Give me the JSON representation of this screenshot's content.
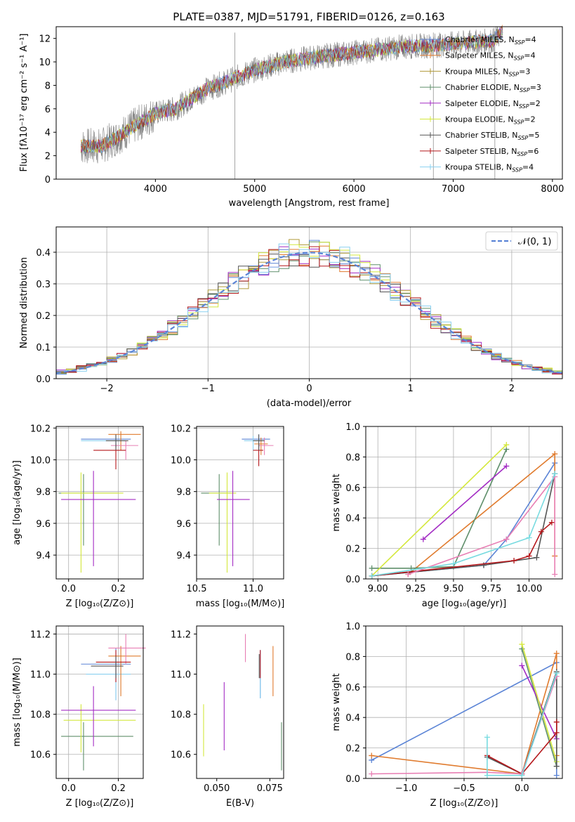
{
  "chart_data": [
    {
      "type": "line",
      "title": "PLATE=0387, MJD=51791, FIBERID=0126, z=0.163",
      "xlabel": "wavelength [Angstrom, rest frame]",
      "ylabel": "Flux [fλ10⁻¹⁷ erg cm⁻² s⁻¹ A⁻¹]",
      "xlim": [
        3000,
        8100
      ],
      "ylim": [
        0,
        13
      ],
      "xticks": [
        4000,
        5000,
        6000,
        7000,
        8000
      ],
      "yticks": [
        0,
        2,
        4,
        6,
        8,
        10,
        12
      ],
      "legend_position": "top-right",
      "grid": false,
      "observed": {
        "x": [
          3250,
          3450,
          3600,
          3800,
          4000,
          4200,
          4500,
          4800,
          5000,
          5300,
          5600,
          5900,
          6200,
          6500,
          6800,
          7100,
          7400,
          7500
        ],
        "y": [
          2.8,
          2.8,
          3.5,
          4.6,
          5.6,
          6.0,
          7.6,
          8.6,
          9.3,
          10.0,
          10.4,
          10.7,
          11.0,
          11.3,
          11.4,
          11.6,
          11.8,
          12.6
        ]
      },
      "series": [
        {
          "name": "Chabrier MILES, N_SSP=4",
          "color": "#5b84d6"
        },
        {
          "name": "Salpeter MILES, N_SSP=4",
          "color": "#e07b2e"
        },
        {
          "name": "Kroupa MILES, N_SSP=3",
          "color": "#b09a3a"
        },
        {
          "name": "Chabrier ELODIE, N_SSP=3",
          "color": "#5f8f6b"
        },
        {
          "name": "Salpeter ELODIE, N_SSP=2",
          "color": "#a32cc4"
        },
        {
          "name": "Kroupa ELODIE, N_SSP=2",
          "color": "#d4e83c"
        },
        {
          "name": "Chabrier STELIB, N_SSP=5",
          "color": "#555555"
        },
        {
          "name": "Salpeter STELIB, N_SSP=6",
          "color": "#b5171b"
        },
        {
          "name": "Kroupa STELIB, N_SSP=4",
          "color": "#8ad0f0"
        }
      ]
    },
    {
      "type": "histogram",
      "xlabel": "(data-model)/error",
      "ylabel": "Normed distribution",
      "xlim": [
        -2.5,
        2.5
      ],
      "ylim": [
        0,
        0.48
      ],
      "xticks": [
        -2,
        -1,
        0,
        1,
        2
      ],
      "xtick_labels": [
        "−2",
        "−1",
        "0",
        "1",
        "2"
      ],
      "yticks": [
        0.0,
        0.1,
        0.2,
        0.3,
        0.4
      ],
      "ytick_labels": [
        "0.0",
        "0.1",
        "0.2",
        "0.3",
        "0.4"
      ],
      "grid": true,
      "legend": "𝒩(0, 1)",
      "legend_position": "top-right",
      "gaussian": {
        "mu": 0,
        "sigma": 1,
        "color": "#5b84d6"
      },
      "bin_width": 0.1
    },
    {
      "type": "scatter",
      "xlabel": "Z [log₁₀(Z/Z⊙)]",
      "ylabel": "age  [log₁₀(age/yr)]",
      "xlim": [
        -0.05,
        0.3
      ],
      "ylim": [
        9.25,
        10.21
      ],
      "xticks": [
        0.0,
        0.2
      ],
      "xtick_labels": [
        "0.0",
        "0.2"
      ],
      "yticks": [
        9.4,
        9.6,
        9.8,
        10.0,
        10.2
      ],
      "ytick_labels": [
        "9.4",
        "9.6",
        "9.8",
        "10.0",
        "10.2"
      ],
      "grid": true,
      "points": [
        {
          "x": 0.19,
          "y": 10.13,
          "xerr": [
            0.14,
            0.06
          ],
          "yerr": [
            0.05,
            0.03
          ],
          "color": "#5b84d6"
        },
        {
          "x": 0.19,
          "y": 10.12,
          "xerr": [
            0.14,
            0.04
          ],
          "yerr": [
            0.04,
            0.03
          ],
          "color": "#8ad0f0"
        },
        {
          "x": 0.21,
          "y": 10.16,
          "xerr": [
            0.05,
            0.08
          ],
          "yerr": [
            0.1,
            0.02
          ],
          "color": "#e07b2e"
        },
        {
          "x": 0.23,
          "y": 10.09,
          "xerr": [
            0.06,
            0.05
          ],
          "yerr": [
            0.09,
            0.03
          ],
          "color": "#e87fb4"
        },
        {
          "x": 0.19,
          "y": 10.06,
          "xerr": [
            0.09,
            0.04
          ],
          "yerr": [
            0.12,
            0.04
          ],
          "color": "#b5171b"
        },
        {
          "x": 0.19,
          "y": 10.12,
          "xerr": [
            0.04,
            0.05
          ],
          "yerr": [
            0.06,
            0.04
          ],
          "color": "#555555"
        },
        {
          "x": 0.06,
          "y": 9.79,
          "xerr": [
            0.1,
            0.14
          ],
          "yerr": [
            0.33,
            0.12
          ],
          "color": "#5f8f6b"
        },
        {
          "x": 0.05,
          "y": 9.79,
          "xerr": [
            0.08,
            0.17
          ],
          "yerr": [
            0.5,
            0.13
          ],
          "color": "#d4e83c"
        },
        {
          "x": 0.1,
          "y": 9.75,
          "xerr": [
            0.13,
            0.17
          ],
          "yerr": [
            0.42,
            0.18
          ],
          "color": "#a32cc4"
        }
      ]
    },
    {
      "type": "scatter",
      "xlabel": "mass [log₁₀(M/M⊙)]",
      "ylabel": "",
      "xlim": [
        10.5,
        11.27
      ],
      "ylim": [
        9.25,
        10.21
      ],
      "xticks": [
        10.5,
        11.0
      ],
      "xtick_labels": [
        "10.5",
        "11.0"
      ],
      "yticks": [
        9.4,
        9.6,
        9.8,
        10.0,
        10.2
      ],
      "ytick_labels": [
        "9.4",
        "9.6",
        "9.8",
        "10.0",
        "10.2"
      ],
      "grid": true,
      "points": [
        {
          "x": 11.05,
          "y": 10.13,
          "xerr": [
            0.15,
            0.1
          ],
          "yerr": [
            0.05,
            0.03
          ],
          "color": "#5b84d6"
        },
        {
          "x": 11.0,
          "y": 10.12,
          "xerr": [
            0.08,
            0.1
          ],
          "yerr": [
            0.06,
            0.03
          ],
          "color": "#8ad0f0"
        },
        {
          "x": 11.07,
          "y": 10.1,
          "xerr": [
            0.06,
            0.06
          ],
          "yerr": [
            0.07,
            0.04
          ],
          "color": "#e07b2e"
        },
        {
          "x": 11.1,
          "y": 10.09,
          "xerr": [
            0.05,
            0.08
          ],
          "yerr": [
            0.06,
            0.05
          ],
          "color": "#e87fb4"
        },
        {
          "x": 11.05,
          "y": 10.06,
          "xerr": [
            0.05,
            0.04
          ],
          "yerr": [
            0.1,
            0.04
          ],
          "color": "#b5171b"
        },
        {
          "x": 11.05,
          "y": 10.12,
          "xerr": [
            0.05,
            0.05
          ],
          "yerr": [
            0.06,
            0.04
          ],
          "color": "#555555"
        },
        {
          "x": 10.7,
          "y": 9.79,
          "xerr": [
            0.16,
            0.1
          ],
          "yerr": [
            0.33,
            0.12
          ],
          "color": "#5f8f6b"
        },
        {
          "x": 10.77,
          "y": 9.79,
          "xerr": [
            0.16,
            0.08
          ],
          "yerr": [
            0.5,
            0.13
          ],
          "color": "#d4e83c"
        },
        {
          "x": 10.82,
          "y": 9.75,
          "xerr": [
            0.14,
            0.15
          ],
          "yerr": [
            0.42,
            0.18
          ],
          "color": "#a32cc4"
        }
      ]
    },
    {
      "type": "line",
      "xlabel": "age  [log₁₀(age/yr)]",
      "ylabel": "mass weight",
      "xlim": [
        8.92,
        10.22
      ],
      "ylim": [
        0,
        1.0
      ],
      "xticks": [
        9.0,
        9.25,
        9.5,
        9.75,
        10.0
      ],
      "xtick_labels": [
        "9.00",
        "9.25",
        "9.50",
        "9.75",
        "10.00"
      ],
      "yticks": [
        0.0,
        0.2,
        0.4,
        0.6,
        0.8,
        1.0
      ],
      "ytick_labels": [
        "0.0",
        "0.2",
        "0.4",
        "0.6",
        "0.8",
        "1.0"
      ],
      "grid": true,
      "series": [
        {
          "color": "#5b84d6",
          "x": [
            8.96,
            9.7,
            9.85,
            10.17
          ],
          "y": [
            0.02,
            0.09,
            0.26,
            0.76
          ]
        },
        {
          "color": "#e07b2e",
          "x": [
            9.2,
            10.17,
            10.17
          ],
          "y": [
            0.03,
            0.82,
            0.15
          ]
        },
        {
          "color": "#5f8f6b",
          "x": [
            8.96,
            9.22,
            9.5,
            9.85
          ],
          "y": [
            0.07,
            0.07,
            0.08,
            0.85
          ]
        },
        {
          "color": "#a32cc4",
          "x": [
            9.3,
            9.85
          ],
          "y": [
            0.26,
            0.74
          ]
        },
        {
          "color": "#d4e83c",
          "x": [
            8.96,
            9.85
          ],
          "y": [
            0.02,
            0.88
          ]
        },
        {
          "color": "#555555",
          "x": [
            8.96,
            9.7,
            10.05,
            10.17
          ],
          "y": [
            0.02,
            0.09,
            0.14,
            0.69
          ]
        },
        {
          "color": "#b5171b",
          "x": [
            8.96,
            9.9,
            10.0,
            10.08,
            10.15
          ],
          "y": [
            0.02,
            0.12,
            0.15,
            0.31,
            0.37
          ]
        },
        {
          "color": "#e87fb4",
          "x": [
            9.2,
            9.85,
            10.17,
            10.17
          ],
          "y": [
            0.03,
            0.26,
            0.67,
            0.03
          ]
        },
        {
          "color": "#78dbe0",
          "x": [
            8.96,
            9.5,
            10.0,
            10.17
          ],
          "y": [
            0.02,
            0.1,
            0.27,
            0.69
          ]
        }
      ]
    },
    {
      "type": "scatter",
      "xlabel": "Z [log₁₀(Z/Z⊙)]",
      "ylabel": "mass [log₁₀(M/M⊙)]",
      "xlim": [
        -0.05,
        0.3
      ],
      "ylim": [
        10.48,
        11.24
      ],
      "xticks": [
        0.0,
        0.2
      ],
      "xtick_labels": [
        "0.0",
        "0.2"
      ],
      "yticks": [
        10.6,
        10.8,
        11.0,
        11.2
      ],
      "ytick_labels": [
        "10.6",
        "10.8",
        "11.0",
        "11.2"
      ],
      "grid": true,
      "points": [
        {
          "x": 0.19,
          "y": 11.05,
          "xerr": [
            0.14,
            0.06
          ],
          "yerr": [
            0.18,
            0.08
          ],
          "color": "#5b84d6"
        },
        {
          "x": 0.19,
          "y": 11.0,
          "xerr": [
            0.12,
            0.06
          ],
          "yerr": [
            0.13,
            0.06
          ],
          "color": "#8ad0f0"
        },
        {
          "x": 0.21,
          "y": 11.09,
          "xerr": [
            0.05,
            0.08
          ],
          "yerr": [
            0.2,
            0.05
          ],
          "color": "#e07b2e"
        },
        {
          "x": 0.23,
          "y": 11.13,
          "xerr": [
            0.07,
            0.08
          ],
          "yerr": [
            0.08,
            0.07
          ],
          "color": "#e87fb4"
        },
        {
          "x": 0.19,
          "y": 11.06,
          "xerr": [
            0.08,
            0.06
          ],
          "yerr": [
            0.1,
            0.06
          ],
          "color": "#b5171b"
        },
        {
          "x": 0.19,
          "y": 11.04,
          "xerr": [
            0.1,
            0.03
          ],
          "yerr": [
            0.06,
            0.05
          ],
          "color": "#555555"
        },
        {
          "x": 0.06,
          "y": 10.69,
          "xerr": [
            0.09,
            0.2
          ],
          "yerr": [
            0.17,
            0.07
          ],
          "color": "#5f8f6b"
        },
        {
          "x": 0.05,
          "y": 10.77,
          "xerr": [
            0.07,
            0.22
          ],
          "yerr": [
            0.16,
            0.08
          ],
          "color": "#d4e83c"
        },
        {
          "x": 0.1,
          "y": 10.82,
          "xerr": [
            0.13,
            0.17
          ],
          "yerr": [
            0.18,
            0.12
          ],
          "color": "#a32cc4"
        }
      ]
    },
    {
      "type": "scatter",
      "xlabel": "E(B-V)",
      "ylabel": "",
      "xlim": [
        0.0405,
        0.0815
      ],
      "ylim": [
        10.48,
        11.24
      ],
      "xticks": [
        0.05,
        0.075
      ],
      "xtick_labels": [
        "0.050",
        "0.075"
      ],
      "yticks": [
        10.6,
        10.8,
        11.0,
        11.2
      ],
      "ytick_labels": [
        "10.6",
        "10.8",
        "11.0",
        "11.2"
      ],
      "grid": false,
      "points": [
        {
          "x": 0.0705,
          "y": 11.05,
          "yerr": [
            0.17,
            0.07
          ],
          "color": "#5b84d6"
        },
        {
          "x": 0.0705,
          "y": 11.0,
          "yerr": [
            0.12,
            0.06
          ],
          "color": "#8ad0f0"
        },
        {
          "x": 0.0765,
          "y": 11.09,
          "yerr": [
            0.2,
            0.05
          ],
          "color": "#e07b2e"
        },
        {
          "x": 0.0635,
          "y": 11.13,
          "yerr": [
            0.07,
            0.07
          ],
          "color": "#e87fb4"
        },
        {
          "x": 0.0705,
          "y": 11.06,
          "yerr": [
            0.08,
            0.06
          ],
          "color": "#b5171b"
        },
        {
          "x": 0.07,
          "y": 11.04,
          "yerr": [
            0.06,
            0.06
          ],
          "color": "#555555"
        },
        {
          "x": 0.0805,
          "y": 10.63,
          "yerr": [
            0.11,
            0.13
          ],
          "color": "#5f8f6b"
        },
        {
          "x": 0.0438,
          "y": 10.72,
          "yerr": [
            0.13,
            0.13
          ],
          "color": "#d4e83c"
        },
        {
          "x": 0.0535,
          "y": 10.79,
          "yerr": [
            0.17,
            0.17
          ],
          "color": "#a32cc4"
        }
      ]
    },
    {
      "type": "line",
      "xlabel": "Z [log₁₀(Z/Z⊙)]",
      "ylabel": "mass weight",
      "xlim": [
        -1.35,
        0.35
      ],
      "ylim": [
        0,
        1.0
      ],
      "xticks": [
        -1.0,
        -0.5,
        0.0
      ],
      "xtick_labels": [
        "−1.0",
        "−0.5",
        "0.0"
      ],
      "yticks": [
        0.0,
        0.2,
        0.4,
        0.6,
        0.8,
        1.0
      ],
      "ytick_labels": [
        "0.0",
        "0.2",
        "0.4",
        "0.6",
        "0.8",
        "1.0"
      ],
      "grid": true,
      "series": [
        {
          "color": "#5b84d6",
          "x": [
            -1.3,
            0.3,
            0.3
          ],
          "y": [
            0.12,
            0.76,
            0.02
          ]
        },
        {
          "color": "#e07b2e",
          "x": [
            -1.3,
            0.0,
            0.3,
            0.3
          ],
          "y": [
            0.15,
            0.03,
            0.82,
            0.15
          ]
        },
        {
          "color": "#5f8f6b",
          "x": [
            0.0,
            0.3
          ],
          "y": [
            0.85,
            0.08
          ]
        },
        {
          "color": "#a32cc4",
          "x": [
            0.0,
            0.3
          ],
          "y": [
            0.74,
            0.26
          ]
        },
        {
          "color": "#d4e83c",
          "x": [
            0.0,
            0.3
          ],
          "y": [
            0.88,
            0.11
          ]
        },
        {
          "color": "#555555",
          "x": [
            -0.3,
            0.0,
            0.3,
            0.3
          ],
          "y": [
            0.14,
            0.03,
            0.7,
            0.08
          ]
        },
        {
          "color": "#b5171b",
          "x": [
            -0.3,
            0.0,
            0.3,
            0.3
          ],
          "y": [
            0.15,
            0.03,
            0.3,
            0.37
          ]
        },
        {
          "color": "#e87fb4",
          "x": [
            -1.3,
            -0.3,
            0.0,
            0.3
          ],
          "y": [
            0.03,
            0.04,
            0.03,
            0.67
          ]
        },
        {
          "color": "#78dbe0",
          "x": [
            -0.3,
            -0.3,
            0.0,
            0.3
          ],
          "y": [
            0.27,
            0.02,
            0.02,
            0.69
          ]
        }
      ]
    }
  ]
}
